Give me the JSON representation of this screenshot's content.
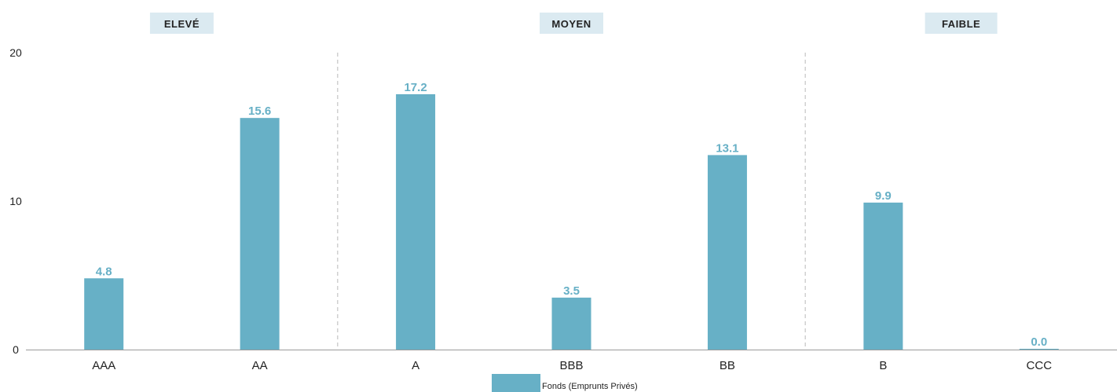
{
  "chart_data": {
    "type": "bar",
    "categories": [
      "AAA",
      "AA",
      "A",
      "BBB",
      "BB",
      "B",
      "CCC"
    ],
    "series": [
      {
        "name": "Fonds (Emprunts Privés)",
        "values": [
          4.8,
          15.6,
          17.2,
          3.5,
          13.1,
          9.9,
          0.0
        ],
        "color": "#67b0c6"
      }
    ],
    "value_labels": [
      "4.8",
      "15.6",
      "17.2",
      "3.5",
      "13.1",
      "9.9",
      "0.0"
    ],
    "ylim": [
      0,
      20
    ],
    "yticks": [
      0,
      10,
      20
    ],
    "ytick_labels": [
      "0",
      "10",
      "20"
    ],
    "groups": [
      {
        "label": "ELEVÉ",
        "categories": [
          "AAA",
          "AA"
        ]
      },
      {
        "label": "MOYEN",
        "categories": [
          "A",
          "BBB",
          "BB"
        ]
      },
      {
        "label": "FAIBLE",
        "categories": [
          "B",
          "CCC"
        ]
      }
    ],
    "legend": {
      "position": "bottom-center"
    },
    "grid": false,
    "colors": {
      "bar": "#67b0c6",
      "value_label": "#67b0c6",
      "band": "#dbeaf1",
      "separator": "#b8b8b8",
      "axis": "#9a9a9a"
    },
    "title": "",
    "xlabel": "",
    "ylabel": ""
  }
}
